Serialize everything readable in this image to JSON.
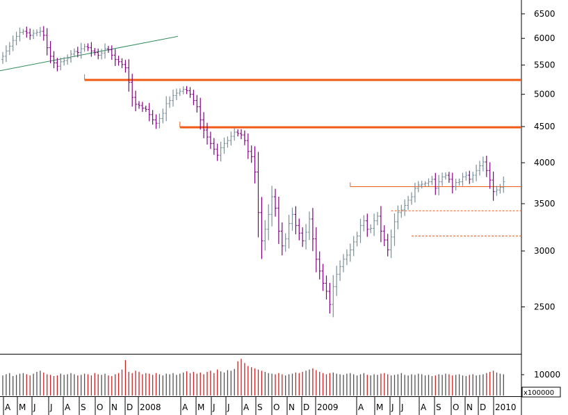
{
  "chart_data": {
    "type": "ohlc",
    "scale": "log",
    "ylim": [
      2150,
      6800
    ],
    "yticks": [
      {
        "value": 2500,
        "label": "2500"
      },
      {
        "value": 3000,
        "label": "3000"
      },
      {
        "value": 3500,
        "label": "3500"
      },
      {
        "value": 4000,
        "label": "4000"
      },
      {
        "value": 4500,
        "label": "4500"
      },
      {
        "value": 5000,
        "label": "5000"
      },
      {
        "value": 5500,
        "label": "5500"
      },
      {
        "value": 6000,
        "label": "6000"
      },
      {
        "value": 6500,
        "label": "6500"
      }
    ],
    "x_labels": [
      "A",
      "M",
      "J",
      "J",
      "A",
      "S",
      "O",
      "N",
      "D",
      "2008",
      "A",
      "M",
      "J",
      "J",
      "A",
      "S",
      "O",
      "N",
      "D",
      "2009",
      "A",
      "M",
      "J",
      "J",
      "A",
      "S",
      "O",
      "N",
      "D",
      "2010"
    ],
    "weekly_close": [
      5660,
      5760,
      5850,
      5960,
      6040,
      6120,
      6140,
      6110,
      6060,
      6100,
      6120,
      6140,
      6060,
      5820,
      5660,
      5540,
      5480,
      5560,
      5580,
      5620,
      5700,
      5750,
      5730,
      5800,
      5840,
      5820,
      5760,
      5730,
      5680,
      5720,
      5800,
      5780,
      5680,
      5600,
      5560,
      5510,
      5450,
      5200,
      4950,
      4840,
      4820,
      4780,
      4760,
      4680,
      4600,
      4550,
      4620,
      4700,
      4850,
      4900,
      4980,
      5020,
      5050,
      5080,
      5060,
      5000,
      4900,
      4800,
      4600,
      4450,
      4350,
      4260,
      4180,
      4100,
      4200,
      4260,
      4300,
      4360,
      4420,
      4400,
      4380,
      4300,
      4150,
      4080,
      3880,
      3400,
      3100,
      3220,
      3380,
      3580,
      3450,
      3200,
      3050,
      3120,
      3280,
      3380,
      3260,
      3180,
      3100,
      3190,
      3330,
      3120,
      2920,
      2810,
      2700,
      2630,
      2520,
      2670,
      2780,
      2850,
      2920,
      2960,
      3010,
      3090,
      3150,
      3260,
      3310,
      3220,
      3230,
      3310,
      3360,
      3200,
      3110,
      3010,
      3140,
      3300,
      3400,
      3430,
      3480,
      3540,
      3580,
      3680,
      3720,
      3730,
      3740,
      3760,
      3790,
      3680,
      3760,
      3820,
      3840,
      3790,
      3700,
      3750,
      3760,
      3820,
      3840,
      3790,
      3840,
      3900,
      3960,
      4010,
      3900,
      3780,
      3640,
      3660,
      3690,
      3760
    ],
    "volume": [
      34,
      36,
      38,
      33,
      35,
      37,
      38,
      36,
      34,
      37,
      40,
      42,
      39,
      36,
      35,
      33,
      34,
      37,
      35,
      36,
      38,
      36,
      34,
      35,
      37,
      36,
      34,
      38,
      36,
      35,
      37,
      34,
      33,
      36,
      38,
      44,
      60,
      40,
      38,
      42,
      40,
      36,
      38,
      37,
      35,
      38,
      36,
      34,
      37,
      36,
      38,
      35,
      37,
      39,
      41,
      38,
      40,
      37,
      39,
      36,
      40,
      42,
      38,
      44,
      41,
      39,
      43,
      42,
      45,
      58,
      62,
      55,
      50,
      48,
      46,
      44,
      42,
      40,
      38,
      37,
      36,
      38,
      36,
      34,
      36,
      37,
      39,
      38,
      40,
      42,
      44,
      46,
      43,
      40,
      38,
      36,
      38,
      39,
      37,
      36,
      35,
      37,
      38,
      36,
      34,
      36,
      38,
      35,
      34,
      36,
      35,
      37,
      38,
      36,
      34,
      35,
      36,
      38,
      35,
      34,
      36,
      35,
      37,
      36,
      34,
      35,
      33,
      34,
      36,
      35,
      37,
      36,
      34,
      35,
      36,
      34,
      33,
      35,
      36,
      34,
      35,
      36,
      38,
      40,
      42,
      39,
      37,
      36
    ],
    "volume_label": "10000",
    "volume_unit": "x100000",
    "trendline": [
      {
        "week": 0,
        "price": 5400
      },
      {
        "week": 51,
        "price": 6040
      }
    ],
    "horizontal_levels": [
      {
        "price": 5240,
        "from_week": 24,
        "style": "thick"
      },
      {
        "price": 4490,
        "from_week": 52,
        "style": "thick"
      },
      {
        "price": 3700,
        "from_week": 102,
        "style": "thin"
      },
      {
        "price": 3420,
        "from_week": 114,
        "style": "dotted"
      },
      {
        "price": 3150,
        "from_week": 120,
        "style": "dotted"
      }
    ],
    "colors": {
      "bar_up": "#7a8f9a",
      "bar_down": "#800080",
      "vol_up": "#505050",
      "vol_down": "#cc2020",
      "level": "#f05a14",
      "trend": "#2e8b57",
      "axis": "#000000"
    }
  }
}
